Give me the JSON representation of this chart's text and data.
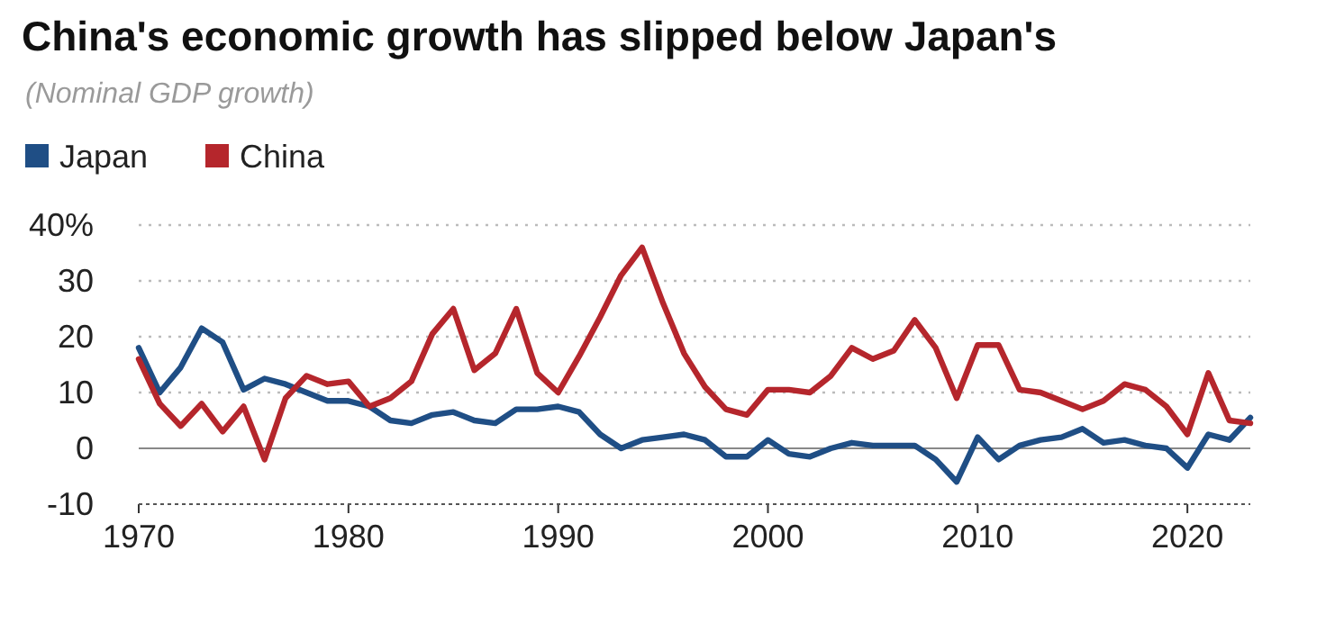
{
  "chart_data": {
    "type": "line",
    "title": "China's economic growth has slipped below Japan's",
    "subtitle": "(Nominal GDP growth)",
    "x": [
      1970,
      1971,
      1972,
      1973,
      1974,
      1975,
      1976,
      1977,
      1978,
      1979,
      1980,
      1981,
      1982,
      1983,
      1984,
      1985,
      1986,
      1987,
      1988,
      1989,
      1990,
      1991,
      1992,
      1993,
      1994,
      1995,
      1996,
      1997,
      1998,
      1999,
      2000,
      2001,
      2002,
      2003,
      2004,
      2005,
      2006,
      2007,
      2008,
      2009,
      2010,
      2011,
      2012,
      2013,
      2014,
      2015,
      2016,
      2017,
      2018,
      2019,
      2020,
      2021,
      2022,
      2023
    ],
    "series": [
      {
        "name": "Japan",
        "color": "#1f4e85",
        "values": [
          18,
          10,
          14.5,
          21.5,
          19,
          10.5,
          12.5,
          11.5,
          10,
          8.5,
          8.5,
          7.5,
          5,
          4.5,
          6,
          6.5,
          5,
          4.5,
          7,
          7,
          7.5,
          6.5,
          2.5,
          0,
          1.5,
          2,
          2.5,
          1.5,
          -1.5,
          -1.5,
          1.5,
          -1,
          -1.5,
          0,
          1,
          0.5,
          0.5,
          0.5,
          -2,
          -6,
          2,
          -2,
          0.5,
          1.5,
          2,
          3.5,
          1,
          1.5,
          0.5,
          0,
          -3.5,
          2.5,
          1.5,
          5.5
        ]
      },
      {
        "name": "China",
        "color": "#b5262c",
        "values": [
          16,
          8,
          4,
          8,
          3,
          7.5,
          -2,
          9,
          13,
          11.5,
          12,
          7.5,
          9,
          12,
          20.5,
          25,
          14,
          17,
          25,
          13.5,
          10,
          16.5,
          23.5,
          31,
          36,
          26,
          17,
          11,
          7,
          6,
          10.5,
          10.5,
          10,
          13,
          18,
          16,
          17.5,
          23,
          18,
          9,
          18.5,
          18.5,
          10.5,
          10,
          8.5,
          7,
          8.5,
          11.5,
          10.5,
          7.5,
          2.5,
          13.5,
          5,
          4.5
        ]
      }
    ],
    "xlim": [
      1970,
      2023
    ],
    "xticks": [
      1970,
      1980,
      1990,
      2000,
      2010,
      2020
    ],
    "ylim": [
      -10,
      40
    ],
    "yticks": [
      -10,
      0,
      10,
      20,
      30,
      {
        "value": 40,
        "label": "40%"
      }
    ],
    "grid": "y",
    "legend": "top left",
    "marker": "none",
    "line_style": "solid"
  }
}
